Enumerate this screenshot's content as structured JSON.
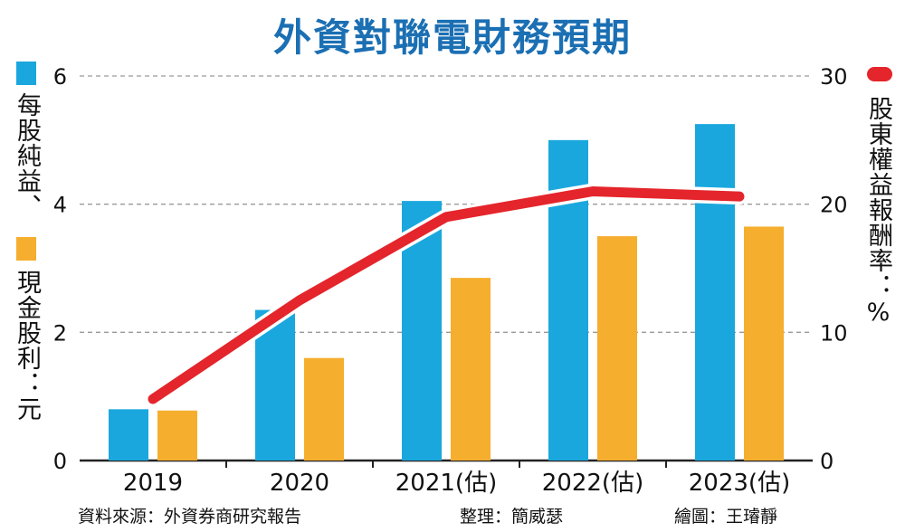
{
  "chart_data": {
    "type": "bar+line",
    "title": "外資對聯電財務預期",
    "categories": [
      "2019",
      "2020",
      "2021(估)",
      "2022(估)",
      "2023(估)"
    ],
    "series": [
      {
        "name": "每股純益",
        "type": "bar",
        "axis": "left",
        "color": "#1aa7de",
        "values": [
          0.8,
          2.35,
          4.05,
          5.0,
          5.25
        ]
      },
      {
        "name": "現金股利",
        "type": "bar",
        "axis": "left",
        "color": "#f5ae2e",
        "values": [
          0.78,
          1.6,
          2.85,
          3.5,
          3.65
        ]
      },
      {
        "name": "股東權益報酬率",
        "type": "line",
        "axis": "right",
        "color": "#e4252b",
        "values": [
          4.8,
          12.5,
          19.0,
          21.0,
          20.6
        ]
      }
    ],
    "y_left": {
      "label": "每股純益、現金股利：元",
      "range": [
        0,
        6
      ],
      "ticks": [
        "0",
        "2",
        "4",
        "6"
      ]
    },
    "y_right": {
      "label": "股東權益報酬率：%",
      "range": [
        0,
        30
      ],
      "ticks": [
        "0",
        "10",
        "20",
        "30"
      ]
    },
    "grid": "dashed horizontal"
  },
  "labels": {
    "left_part1": "每股純益、",
    "left_part2": "現金股利：元",
    "right": "股東權益報酬率：%"
  },
  "footer": {
    "source": "資料來源：外資券商研究報告",
    "editor": "整理：簡威瑟",
    "artist": "繪圖：王璿靜"
  }
}
